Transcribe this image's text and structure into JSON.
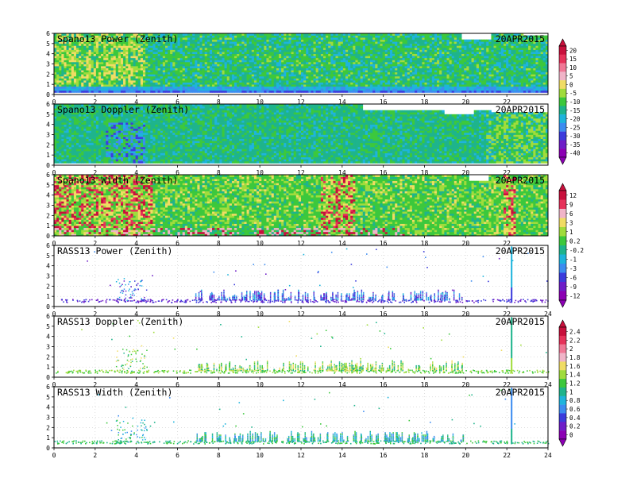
{
  "date": "20APR2015",
  "panels": [
    {
      "title": "Spano13 Power (Zenith)",
      "field": "power"
    },
    {
      "title": "Spano13 Doppler (Zenith)",
      "field": "doppler"
    },
    {
      "title": "Spano13 Width (Zenith)",
      "field": "width"
    },
    {
      "title": "RASS13 Power (Zenith)",
      "field": "rass-power"
    },
    {
      "title": "RASS13 Doppler (Zenith)",
      "field": "rass-doppler"
    },
    {
      "title": "RASS13 Width (Zenith)",
      "field": "rass-width"
    }
  ],
  "x_ticks": [
    "0",
    "2",
    "4",
    "6",
    "8",
    "10",
    "12",
    "14",
    "16",
    "18",
    "20",
    "22",
    "24"
  ],
  "x_ticks_short": [
    "0",
    "2",
    "4",
    "6",
    "8",
    "10",
    "12",
    "14",
    "16",
    "18",
    "20",
    "22"
  ],
  "y_ticks": [
    "0",
    "1",
    "2",
    "3",
    "4",
    "5",
    "6"
  ],
  "colorbars": [
    {
      "name": "colorbar-1",
      "labels": [
        "20",
        "15",
        "10",
        "5",
        "0",
        "-5",
        "-10",
        "-15",
        "-20",
        "-25",
        "-30",
        "-35",
        "-40"
      ]
    },
    {
      "name": "colorbar-2",
      "labels": [
        "12",
        "9",
        "6",
        "3",
        "1",
        "0.2",
        "-0.2",
        "-1",
        "-3",
        "-6",
        "-9",
        "-12"
      ]
    },
    {
      "name": "colorbar-3",
      "labels": [
        "2.4",
        "2.2",
        "2",
        "1.8",
        "1.6",
        "1.4",
        "1.2",
        "1",
        "0.8",
        "0.6",
        "0.4",
        "0.2",
        "0"
      ]
    }
  ],
  "chart_data": [
    {
      "type": "heatmap",
      "title": "Spano13 Power (Zenith)",
      "annotation": "20APR2015",
      "xlim": [
        0,
        24
      ],
      "ylim": [
        0,
        6
      ]
    },
    {
      "type": "heatmap",
      "title": "Spano13 Doppler (Zenith)",
      "annotation": "20APR2015",
      "xlim": [
        0,
        24
      ],
      "ylim": [
        0,
        6
      ]
    },
    {
      "type": "heatmap",
      "title": "Spano13 Width (Zenith)",
      "annotation": "20APR2015",
      "xlim": [
        0,
        24
      ],
      "ylim": [
        0,
        6
      ]
    },
    {
      "type": "scatter",
      "title": "RASS13 Power (Zenith)",
      "annotation": "20APR2015",
      "xlim": [
        0,
        24
      ],
      "ylim": [
        0,
        6
      ]
    },
    {
      "type": "scatter",
      "title": "RASS13 Doppler (Zenith)",
      "annotation": "20APR2015",
      "xlim": [
        0,
        24
      ],
      "ylim": [
        0,
        6
      ]
    },
    {
      "type": "scatter",
      "title": "RASS13 Width (Zenith)",
      "annotation": "20APR2015",
      "xlim": [
        0,
        24
      ],
      "ylim": [
        0,
        6
      ]
    }
  ],
  "colors": {
    "scale1": [
      "#c8103c",
      "#e6325a",
      "#f07896",
      "#f0b4c8",
      "#f0dc64",
      "#a0dc3c",
      "#3cc83c",
      "#1eb48c",
      "#1eb4dc",
      "#3c8cf0",
      "#3c3cdc",
      "#6e1ec8",
      "#8c00b4"
    ],
    "scale2": [
      "#c8103c",
      "#e6325a",
      "#f0b4c8",
      "#f0dc64",
      "#a0dc3c",
      "#3cc83c",
      "#1eb48c",
      "#1eb4dc",
      "#3c8cf0",
      "#3c3cdc",
      "#6e1ec8",
      "#8c00b4"
    ],
    "scale3": [
      "#c8103c",
      "#e6325a",
      "#f07896",
      "#f0b4c8",
      "#f0dc64",
      "#a0dc3c",
      "#3cc83c",
      "#1eb48c",
      "#1eb4dc",
      "#3c8cf0",
      "#3c3cdc",
      "#6e1ec8",
      "#8c00b4"
    ]
  }
}
